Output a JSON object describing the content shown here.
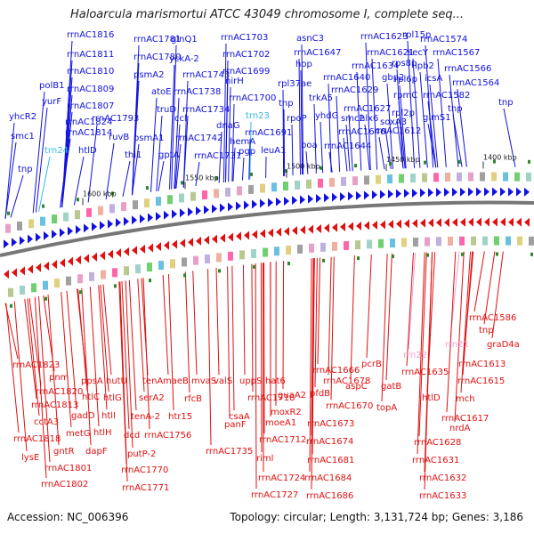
{
  "title": "Haloarcula marismortui ATCC 43049 chromosome I, complete seq...",
  "footer": {
    "accession": "Accession: NC_006396",
    "summary": "Topology: circular; Length: 3,131,724 bp; Genes: 3,186"
  },
  "colors": {
    "forward": "#1010e0",
    "reverse": "#e01010",
    "trna": "#33b8e8",
    "rrna": "#f0a0d0",
    "backbone": "#777777"
  },
  "ticks": [
    {
      "label": "1600 kbp"
    },
    {
      "label": "1550 kbp"
    },
    {
      "label": "1500 kbp"
    },
    {
      "label": "1450 kbp"
    },
    {
      "label": "1400 kbp"
    }
  ],
  "forward_genes": [
    {
      "label": "yhcR2",
      "kind": "gene"
    },
    {
      "label": "smc1",
      "kind": "gene"
    },
    {
      "label": "tnp",
      "kind": "gene"
    },
    {
      "label": "polB1",
      "kind": "gene"
    },
    {
      "label": "yurF",
      "kind": "gene"
    },
    {
      "label": "trn24",
      "kind": "trna"
    },
    {
      "label": "rrnAC1816",
      "kind": "gene"
    },
    {
      "label": "rrnAC1811",
      "kind": "gene"
    },
    {
      "label": "rrnAC1810",
      "kind": "gene"
    },
    {
      "label": "rrnAC1809",
      "kind": "gene"
    },
    {
      "label": "rrnAC1807",
      "kind": "gene"
    },
    {
      "label": "rrnAC1824",
      "kind": "gene"
    },
    {
      "label": "rrnAC1814",
      "kind": "gene"
    },
    {
      "label": "htlD",
      "kind": "gene"
    },
    {
      "label": "rrnAC1793",
      "kind": "gene"
    },
    {
      "label": "ruvB",
      "kind": "gene"
    },
    {
      "label": "rrnAC1781",
      "kind": "gene"
    },
    {
      "label": "rrnAC1780",
      "kind": "gene"
    },
    {
      "label": "psmA2",
      "kind": "gene"
    },
    {
      "label": "psmA1",
      "kind": "gene"
    },
    {
      "label": "thi1",
      "kind": "gene"
    },
    {
      "label": "glnQ1",
      "kind": "gene"
    },
    {
      "label": "yckA-2",
      "kind": "gene"
    },
    {
      "label": "rrnAC1743",
      "kind": "gene"
    },
    {
      "label": "atoE",
      "kind": "gene"
    },
    {
      "label": "rrnAC1738",
      "kind": "gene"
    },
    {
      "label": "truD",
      "kind": "gene"
    },
    {
      "label": "ccl",
      "kind": "gene"
    },
    {
      "label": "rrnAC1734",
      "kind": "gene"
    },
    {
      "label": "rrnAC1742",
      "kind": "gene"
    },
    {
      "label": "gptA",
      "kind": "gene"
    },
    {
      "label": "rrnAC1731",
      "kind": "gene"
    },
    {
      "label": "rrnAC1703",
      "kind": "gene"
    },
    {
      "label": "rrnAC1702",
      "kind": "gene"
    },
    {
      "label": "rrnAC1699",
      "kind": "gene"
    },
    {
      "label": "nirH",
      "kind": "gene"
    },
    {
      "label": "rrnAC1700",
      "kind": "gene"
    },
    {
      "label": "dnaG",
      "kind": "gene"
    },
    {
      "label": "trn23",
      "kind": "trna"
    },
    {
      "label": "hemA",
      "kind": "gene"
    },
    {
      "label": "pgp",
      "kind": "gene"
    },
    {
      "label": "rrnAC1691",
      "kind": "gene"
    },
    {
      "label": "leuA1",
      "kind": "gene"
    },
    {
      "label": "rpl37ae",
      "kind": "gene"
    },
    {
      "label": "tnp",
      "kind": "gene"
    },
    {
      "label": "rpoP",
      "kind": "gene"
    },
    {
      "label": "boa",
      "kind": "gene"
    },
    {
      "label": "asnC3",
      "kind": "gene"
    },
    {
      "label": "rrnAC1647",
      "kind": "gene"
    },
    {
      "label": "hop",
      "kind": "gene"
    },
    {
      "label": "rrnAC1623",
      "kind": "gene"
    },
    {
      "label": "rrnAC1621",
      "kind": "gene"
    },
    {
      "label": "rrnAC1634",
      "kind": "gene"
    },
    {
      "label": "rrnAC1640",
      "kind": "gene"
    },
    {
      "label": "trkA5",
      "kind": "gene"
    },
    {
      "label": "yhdG",
      "kind": "gene"
    },
    {
      "label": "rrnAC1629",
      "kind": "gene"
    },
    {
      "label": "rrnAC1627",
      "kind": "gene"
    },
    {
      "label": "rrnAC1646",
      "kind": "gene"
    },
    {
      "label": "smc2",
      "kind": "gene"
    },
    {
      "label": "hlx6",
      "kind": "gene"
    },
    {
      "label": "rrnAC1644",
      "kind": "gene"
    },
    {
      "label": "rpl15p",
      "kind": "gene"
    },
    {
      "label": "secY",
      "kind": "gene"
    },
    {
      "label": "rps8p",
      "kind": "gene"
    },
    {
      "label": "gbp2",
      "kind": "gene"
    },
    {
      "label": "rpl6p",
      "kind": "gene"
    },
    {
      "label": "rpmC",
      "kind": "gene"
    },
    {
      "label": "soxA3",
      "kind": "gene"
    },
    {
      "label": "rpl2p",
      "kind": "gene"
    },
    {
      "label": "rrnAC1612",
      "kind": "gene"
    },
    {
      "label": "rrnAC1574",
      "kind": "gene"
    },
    {
      "label": "rrnAC1567",
      "kind": "gene"
    },
    {
      "label": "lpb2",
      "kind": "gene"
    },
    {
      "label": "rrnAC1566",
      "kind": "gene"
    },
    {
      "label": "icsA",
      "kind": "gene"
    },
    {
      "label": "rrnAC1564",
      "kind": "gene"
    },
    {
      "label": "rrnAC1582",
      "kind": "gene"
    },
    {
      "label": "glmS1",
      "kind": "gene"
    },
    {
      "label": "tnp",
      "kind": "gene"
    },
    {
      "label": "tnp",
      "kind": "gene"
    }
  ],
  "reverse_genes": [
    {
      "label": "rrnAC1823",
      "kind": "gene"
    },
    {
      "label": "pnm",
      "kind": "gene"
    },
    {
      "label": "rrnAC1820",
      "kind": "gene"
    },
    {
      "label": "rrnAC1813",
      "kind": "gene"
    },
    {
      "label": "cctA3",
      "kind": "gene"
    },
    {
      "label": "rrnAC1818",
      "kind": "gene"
    },
    {
      "label": "lysE",
      "kind": "gene"
    },
    {
      "label": "gntR",
      "kind": "gene"
    },
    {
      "label": "rrnAC1801",
      "kind": "gene"
    },
    {
      "label": "rrnAC1802",
      "kind": "gene"
    },
    {
      "label": "htlC",
      "kind": "gene"
    },
    {
      "label": "gadD",
      "kind": "gene"
    },
    {
      "label": "metG",
      "kind": "gene"
    },
    {
      "label": "ppsA",
      "kind": "gene"
    },
    {
      "label": "htlG",
      "kind": "gene"
    },
    {
      "label": "htlI",
      "kind": "gene"
    },
    {
      "label": "htlH",
      "kind": "gene"
    },
    {
      "label": "dapF",
      "kind": "gene"
    },
    {
      "label": "hutU",
      "kind": "gene"
    },
    {
      "label": "tenA",
      "kind": "gene"
    },
    {
      "label": "serA2",
      "kind": "gene"
    },
    {
      "label": "tenA-2",
      "kind": "gene"
    },
    {
      "label": "dcd",
      "kind": "gene"
    },
    {
      "label": "putP-2",
      "kind": "gene"
    },
    {
      "label": "rrnAC1770",
      "kind": "gene"
    },
    {
      "label": "rrnAC1771",
      "kind": "gene"
    },
    {
      "label": "rrnAC1756",
      "kind": "gene"
    },
    {
      "label": "maeB",
      "kind": "gene"
    },
    {
      "label": "htr15",
      "kind": "gene"
    },
    {
      "label": "mvaS",
      "kind": "gene"
    },
    {
      "label": "rfcB",
      "kind": "gene"
    },
    {
      "label": "valS",
      "kind": "gene"
    },
    {
      "label": "csaA",
      "kind": "gene"
    },
    {
      "label": "panF",
      "kind": "gene"
    },
    {
      "label": "uppS",
      "kind": "gene"
    },
    {
      "label": "rrnAC1718",
      "kind": "gene"
    },
    {
      "label": "hat6",
      "kind": "gene"
    },
    {
      "label": "moeA1",
      "kind": "gene"
    },
    {
      "label": "rrnAC1712",
      "kind": "gene"
    },
    {
      "label": "rrnAC1735",
      "kind": "gene"
    },
    {
      "label": "riml",
      "kind": "gene"
    },
    {
      "label": "rrnAC1724",
      "kind": "gene"
    },
    {
      "label": "rrnAC1727",
      "kind": "gene"
    },
    {
      "label": "guaA2",
      "kind": "gene"
    },
    {
      "label": "moxR2",
      "kind": "gene"
    },
    {
      "label": "rrnAC1666",
      "kind": "gene"
    },
    {
      "label": "rrnAC1678",
      "kind": "gene"
    },
    {
      "label": "pfdB",
      "kind": "gene"
    },
    {
      "label": "rrnAC1670",
      "kind": "gene"
    },
    {
      "label": "rrnAC1673",
      "kind": "gene"
    },
    {
      "label": "rrnAC1674",
      "kind": "gene"
    },
    {
      "label": "rrnAC1681",
      "kind": "gene"
    },
    {
      "label": "rrnAC1684",
      "kind": "gene"
    },
    {
      "label": "rrnAC1686",
      "kind": "gene"
    },
    {
      "label": "aspC",
      "kind": "gene"
    },
    {
      "label": "pcrB",
      "kind": "gene"
    },
    {
      "label": "gatB",
      "kind": "gene"
    },
    {
      "label": "topA",
      "kind": "gene"
    },
    {
      "label": "rrn22",
      "kind": "rrna"
    },
    {
      "label": "rrnAC1635",
      "kind": "gene"
    },
    {
      "label": "htlD",
      "kind": "gene"
    },
    {
      "label": "rrn21",
      "kind": "rrna"
    },
    {
      "label": "rrnAC1613",
      "kind": "gene"
    },
    {
      "label": "rrnAC1615",
      "kind": "gene"
    },
    {
      "label": "mch",
      "kind": "gene"
    },
    {
      "label": "rrnAC1617",
      "kind": "gene"
    },
    {
      "label": "nrdA",
      "kind": "gene"
    },
    {
      "label": "rrnAC1628",
      "kind": "gene"
    },
    {
      "label": "rrnAC1631",
      "kind": "gene"
    },
    {
      "label": "rrnAC1632",
      "kind": "gene"
    },
    {
      "label": "rrnAC1633",
      "kind": "gene"
    },
    {
      "label": "rrnAC1586",
      "kind": "gene"
    },
    {
      "label": "tnp",
      "kind": "gene"
    },
    {
      "label": "graD4a",
      "kind": "gene"
    }
  ]
}
